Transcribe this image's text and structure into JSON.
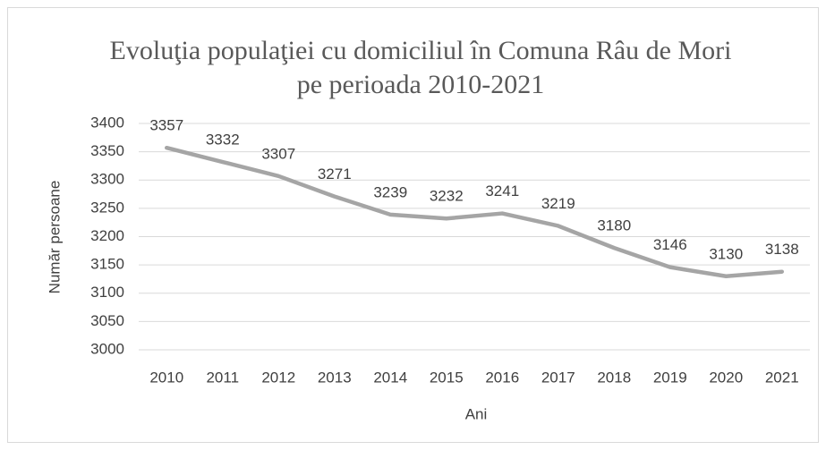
{
  "chart_data": {
    "type": "line",
    "title": "Evoluţia populaţiei cu domiciliul în Comuna Râu de Mori pe perioada 2010-2021",
    "xlabel": "Ani",
    "ylabel": "Număr persoane",
    "categories": [
      "2010",
      "2011",
      "2012",
      "2013",
      "2014",
      "2015",
      "2016",
      "2017",
      "2018",
      "2019",
      "2020",
      "2021"
    ],
    "series": [
      {
        "name": "Număr persoane",
        "color": "#a5a5a5",
        "values": [
          3357,
          3332,
          3307,
          3271,
          3239,
          3232,
          3241,
          3219,
          3180,
          3146,
          3130,
          3138
        ]
      }
    ],
    "ylim": [
      3000,
      3400
    ],
    "yticks": [
      3000,
      3050,
      3100,
      3150,
      3200,
      3250,
      3300,
      3350,
      3400
    ],
    "grid": true,
    "data_labels": true
  }
}
